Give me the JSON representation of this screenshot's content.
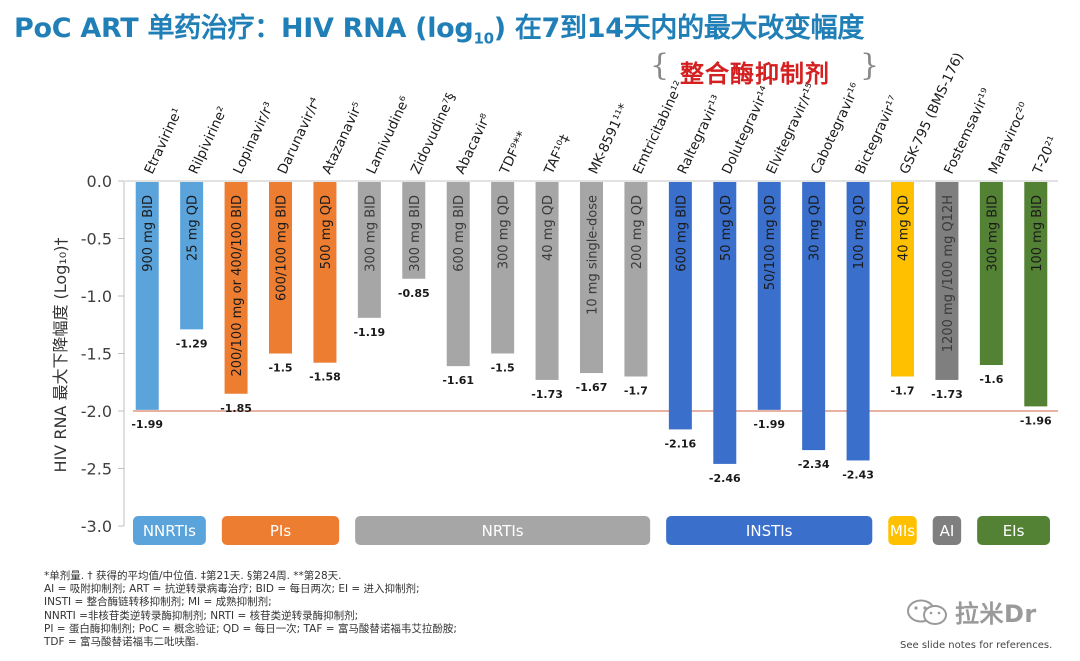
{
  "header": {
    "title_main": "PoC ART 单药治疗：HIV RNA (log",
    "title_sub": "10",
    "title_end": ") 在7到14天内的最大改变幅度",
    "insti_bracket_label": "整合酶抑制剂"
  },
  "chart_data": {
    "type": "bar",
    "ylabel": "HIV RNA 最大下降幅度 (Log₁₀)†",
    "ylim": [
      -3.0,
      0.0
    ],
    "yticks": [
      "0.0",
      "-0.5",
      "-1.0",
      "-1.5",
      "-2.0",
      "-2.5",
      "-3.0"
    ],
    "ytick_values": [
      0,
      -0.5,
      -1.0,
      -1.5,
      -2.0,
      -2.5,
      -3.0
    ],
    "reference_line": -2.0,
    "categories": [
      "Etravirine¹",
      "Rilpivirine²",
      "Lopinavir/r³",
      "Darunavir/r⁴",
      "Atazanavir⁵",
      "Lamivudine⁶",
      "Zidovudine⁷§",
      "Abacavir⁸",
      "TDF⁹**",
      "TAF¹⁰‡",
      "MK-8591¹¹*",
      "Emtricitabine¹²",
      "Raltegravir¹³",
      "Dolutegravir¹⁴",
      "Elvitegravir/r¹⁵",
      "Cabotegravir¹⁶",
      "Bictegravir¹⁷",
      "GSK-795 (BMS-176)",
      "Fostemsavir¹⁹",
      "Maraviroc²⁰",
      "T-20²¹"
    ],
    "values": [
      -1.99,
      -1.29,
      -1.85,
      -1.5,
      -1.58,
      -1.19,
      -0.85,
      -1.61,
      -1.5,
      -1.73,
      -1.67,
      -1.7,
      -2.16,
      -2.46,
      -1.99,
      -2.34,
      -2.43,
      -1.7,
      -1.73,
      -1.6,
      -1.96
    ],
    "value_labels": [
      "-1.99",
      "-1.29",
      "-1.85",
      "-1.5",
      "-1.58",
      "-1.19",
      "-0.85",
      "-1.61",
      "-1.5",
      "-1.73",
      "-1.67",
      "-1.7",
      "-2.16",
      "-2.46",
      "-1.99",
      "-2.34",
      "-2.43",
      "-1.7",
      "-1.73",
      "-1.6",
      "-1.96"
    ],
    "doses": [
      "900 mg BID",
      "25 mg QD",
      "200/100 mg or 400/100 BID",
      "600/100 mg BID",
      "500 mg QD",
      "300 mg BID",
      "300 mg BID",
      "600 mg BID",
      "300 mg QD",
      "40 mg QD",
      "10 mg single-dose",
      "200 mg QD",
      "600 mg BID",
      "50 mg QD",
      "50/100 mg QD",
      "30 mg QD",
      "100 mg QD",
      "40 mg QD",
      "1200 mg /100 mg Q12H",
      "300 mg BID",
      "100 mg BID"
    ],
    "bar_colors": [
      "#5aa3db",
      "#5aa3db",
      "#ed7d31",
      "#ed7d31",
      "#ed7d31",
      "#a6a6a6",
      "#a6a6a6",
      "#a6a6a6",
      "#a6a6a6",
      "#a6a6a6",
      "#a6a6a6",
      "#a6a6a6",
      "#3a6fcb",
      "#3a6fcb",
      "#3a6fcb",
      "#3a6fcb",
      "#3a6fcb",
      "#ffc000",
      "#7f7f7f",
      "#548235",
      "#548235"
    ],
    "groups": [
      {
        "label": "NNRTIs",
        "color": "#5aa3db",
        "start": 0,
        "end": 1
      },
      {
        "label": "PIs",
        "color": "#ed7d31",
        "start": 2,
        "end": 4
      },
      {
        "label": "NRTIs",
        "color": "#a6a6a6",
        "start": 5,
        "end": 11
      },
      {
        "label": "INSTIs",
        "color": "#3a6fcb",
        "start": 12,
        "end": 16
      },
      {
        "label": "MIs",
        "color": "#ffc000",
        "start": 17,
        "end": 17
      },
      {
        "label": "AI",
        "color": "#7f7f7f",
        "start": 18,
        "end": 18
      },
      {
        "label": "EIs",
        "color": "#548235",
        "start": 19,
        "end": 20
      }
    ]
  },
  "footnotes": [
    "*单剂量. † 获得的平均值/中位值. ‡第21天. §第24周. **第28天.",
    "AI = 吸附抑制剂; ART = 抗逆转录病毒治疗; BID = 每日两次; EI = 进入抑制剂;",
    "INSTI = 整合酶链转移抑制剂; MI = 成熟抑制剂;",
    "NNRTI =非核苷类逆转录酶抑制剂; NRTI = 核苷类逆转录酶抑制剂;",
    "PI = 蛋白酶抑制剂; PoC = 概念验证; QD = 每日一次; TAF = 富马酸替诺福韦艾拉酚胺;",
    "TDF = 富马酸替诺福韦二吡呋酯."
  ],
  "references_note": "See slide notes for references.",
  "watermark": "拉米Dr"
}
